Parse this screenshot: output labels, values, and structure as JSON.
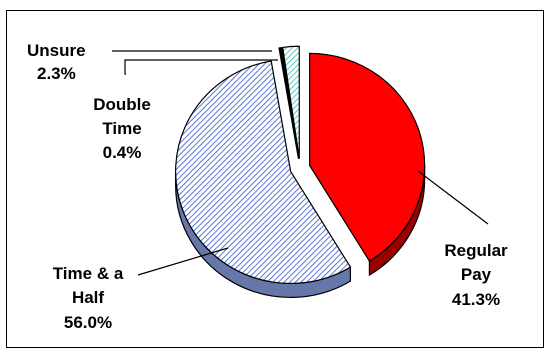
{
  "chart_data": {
    "type": "pie",
    "title": "",
    "three_d": true,
    "exploded": true,
    "slices": [
      {
        "name": "Regular Pay",
        "label_lines": [
          "Regular",
          "Pay"
        ],
        "value": 41.3,
        "value_label": "41.3%",
        "color": "#ff0000",
        "side_color": "#990000",
        "pattern": "solid"
      },
      {
        "name": "Time & a Half",
        "label_lines": [
          "Time & a",
          "Half"
        ],
        "value": 56.0,
        "value_label": "56.0%",
        "color": "#ccd9ff",
        "side_color": "#6677aa",
        "pattern": "diagonal-hatch"
      },
      {
        "name": "Double Time",
        "label_lines": [
          "Double",
          "Time"
        ],
        "value": 0.4,
        "value_label": "0.4%",
        "color": "#000000",
        "side_color": "#000000",
        "pattern": "solid"
      },
      {
        "name": "Unsure",
        "label_lines": [
          "Unsure"
        ],
        "value": 2.3,
        "value_label": "2.3%",
        "color": "#ccffff",
        "side_color": "#88bbbb",
        "pattern": "diagonal-hatch"
      }
    ]
  }
}
